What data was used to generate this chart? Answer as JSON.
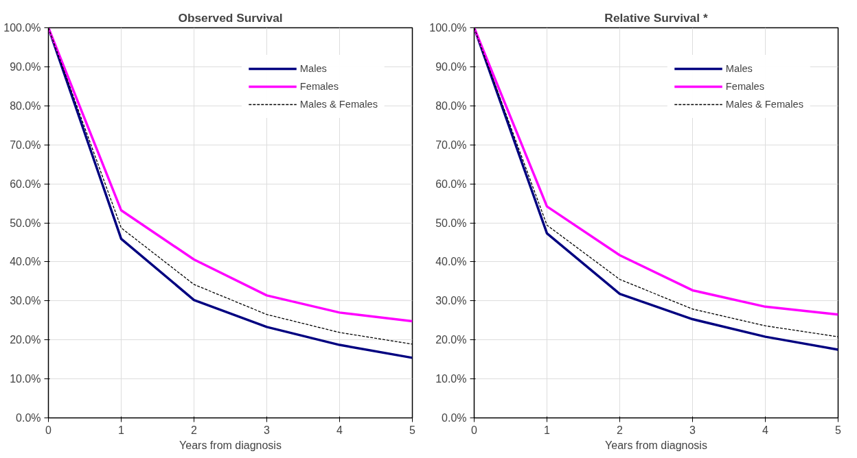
{
  "chart_data": [
    {
      "type": "line",
      "title": "Observed Survival",
      "xlabel": "Years from diagnosis",
      "x": [
        0,
        1,
        2,
        3,
        4,
        5
      ],
      "xlim": [
        0,
        5
      ],
      "xticks": [
        0,
        1,
        2,
        3,
        4,
        5
      ],
      "ylim": [
        0,
        100
      ],
      "yticks": [
        {
          "value": 0,
          "label": "0.0%"
        },
        {
          "value": 10,
          "label": "10.0%"
        },
        {
          "value": 20,
          "label": "20.0%"
        },
        {
          "value": 30,
          "label": "30.0%"
        },
        {
          "value": 40,
          "label": "40.0%"
        },
        {
          "value": 50,
          "label": "50.0%"
        },
        {
          "value": 60,
          "label": "60.0%"
        },
        {
          "value": 70,
          "label": "70.0%"
        },
        {
          "value": 80,
          "label": "80.0%"
        },
        {
          "value": 90,
          "label": "90.0%"
        },
        {
          "value": 100,
          "label": "100.0%"
        }
      ],
      "grid": true,
      "legend": "top right",
      "series": [
        {
          "name": "Males",
          "color": "#000080",
          "line_style": "solid",
          "values": [
            100,
            45.9,
            30.2,
            23.3,
            18.7,
            15.4
          ]
        },
        {
          "name": "Females",
          "color": "#ff00ff",
          "line_style": "solid",
          "values": [
            100,
            53.2,
            40.6,
            31.4,
            27.0,
            24.8
          ]
        },
        {
          "name": "Males & Females",
          "color": "#000000",
          "line_style": "dashed",
          "values": [
            100,
            48.7,
            34.2,
            26.5,
            21.9,
            18.9
          ]
        }
      ]
    },
    {
      "type": "line",
      "title": "Relative Survival *",
      "xlabel": "Years from diagnosis",
      "x": [
        0,
        1,
        2,
        3,
        4,
        5
      ],
      "xlim": [
        0,
        5
      ],
      "xticks": [
        0,
        1,
        2,
        3,
        4,
        5
      ],
      "ylim": [
        0,
        100
      ],
      "yticks": [
        {
          "value": 0,
          "label": "0.0%"
        },
        {
          "value": 10,
          "label": "10.0%"
        },
        {
          "value": 20,
          "label": "20.0%"
        },
        {
          "value": 30,
          "label": "30.0%"
        },
        {
          "value": 40,
          "label": "40.0%"
        },
        {
          "value": 50,
          "label": "50.0%"
        },
        {
          "value": 60,
          "label": "60.0%"
        },
        {
          "value": 70,
          "label": "70.0%"
        },
        {
          "value": 80,
          "label": "80.0%"
        },
        {
          "value": 90,
          "label": "90.0%"
        },
        {
          "value": 100,
          "label": "100.0%"
        }
      ],
      "grid": true,
      "legend": "top right",
      "series": [
        {
          "name": "Males",
          "color": "#000080",
          "line_style": "solid",
          "values": [
            100,
            47.3,
            31.8,
            25.3,
            20.8,
            17.5
          ]
        },
        {
          "name": "Females",
          "color": "#ff00ff",
          "line_style": "solid",
          "values": [
            100,
            54.2,
            41.7,
            32.7,
            28.5,
            26.5
          ]
        },
        {
          "name": "Males & Females",
          "color": "#000000",
          "line_style": "dashed",
          "values": [
            100,
            49.4,
            35.5,
            27.9,
            23.6,
            20.8
          ]
        }
      ]
    }
  ]
}
